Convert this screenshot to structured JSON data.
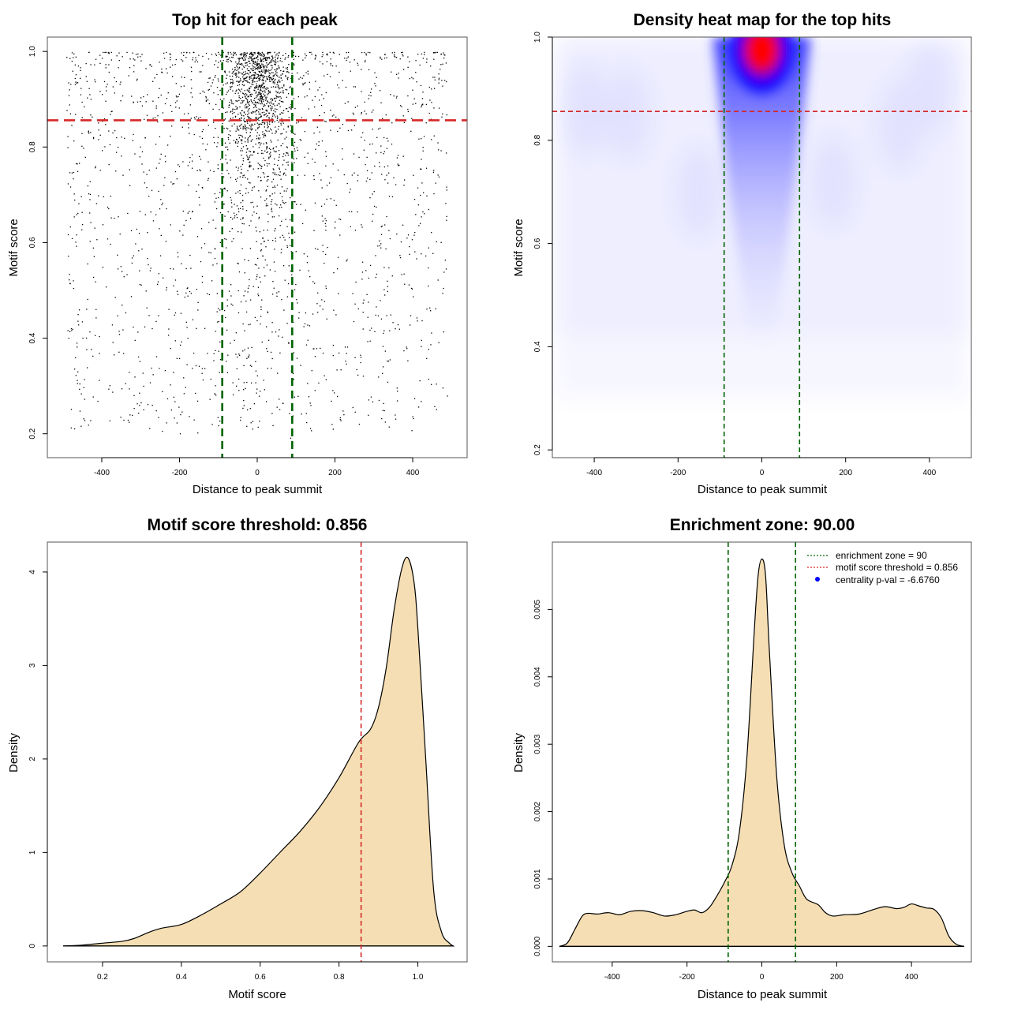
{
  "chart_data": [
    {
      "type": "scatter",
      "title": "Top hit for each peak",
      "xlabel": "Distance to peak summit",
      "ylabel": "Motif score",
      "xlim": [
        -540,
        540
      ],
      "ylim": [
        0.15,
        1.03
      ],
      "xticks": [
        -400,
        -200,
        0,
        200,
        400
      ],
      "xtick_labels": [
        "-400",
        "-200",
        "0",
        "200",
        "400"
      ],
      "yticks": [
        0.2,
        0.4,
        0.6,
        0.8,
        1.0
      ],
      "ytick_labels": [
        "0.2",
        "0.4",
        "0.6",
        "0.8",
        "1.0"
      ],
      "vlines": [
        -90,
        90
      ],
      "hline": 0.856,
      "point_count_estimate": 3000,
      "colors": {
        "points": "#000000",
        "vline": "#006400",
        "hline": "#d62728"
      }
    },
    {
      "type": "heatmap",
      "title": "Density heat map for the top hits",
      "xlabel": "Distance to peak summit",
      "ylabel": "Motif score",
      "xlim": [
        -500,
        500
      ],
      "ylim": [
        0.185,
        1.0
      ],
      "xticks": [
        -400,
        -200,
        0,
        200,
        400
      ],
      "xtick_labels": [
        "-400",
        "-200",
        "0",
        "200",
        "400"
      ],
      "yticks": [
        0.2,
        0.4,
        0.6,
        0.8,
        1.0
      ],
      "ytick_labels": [
        "0.2",
        "0.4",
        "0.6",
        "0.8",
        "1.0"
      ],
      "vlines": [
        -90,
        90
      ],
      "hline": 0.856,
      "hotspot": {
        "x": 0,
        "y": 0.975
      },
      "colors": {
        "low": "#ffffff",
        "mid": "#0000ff",
        "high": "#ff0000",
        "vline": "#006400",
        "hline": "#d62728"
      }
    },
    {
      "type": "area",
      "title": "Motif score threshold: 0.856",
      "xlabel": "Motif score",
      "ylabel": "Density",
      "xlim": [
        0.06,
        1.125
      ],
      "ylim": [
        -0.17,
        4.32
      ],
      "xticks": [
        0.2,
        0.4,
        0.6,
        0.8,
        1.0
      ],
      "xtick_labels": [
        "0.2",
        "0.4",
        "0.6",
        "0.8",
        "1.0"
      ],
      "yticks": [
        0,
        1,
        2,
        3,
        4
      ],
      "ytick_labels": [
        "0",
        "1",
        "2",
        "3",
        "4"
      ],
      "vline": 0.856,
      "x": [
        0.1,
        0.15,
        0.2,
        0.25,
        0.28,
        0.32,
        0.35,
        0.4,
        0.45,
        0.5,
        0.55,
        0.6,
        0.65,
        0.7,
        0.75,
        0.8,
        0.85,
        0.88,
        0.9,
        0.92,
        0.94,
        0.96,
        0.975,
        0.99,
        1.0,
        1.02,
        1.04,
        1.06,
        1.08,
        1.09
      ],
      "y": [
        0.0,
        0.01,
        0.03,
        0.05,
        0.08,
        0.15,
        0.19,
        0.23,
        0.33,
        0.45,
        0.58,
        0.78,
        1.0,
        1.22,
        1.48,
        1.8,
        2.18,
        2.32,
        2.55,
        2.98,
        3.6,
        4.05,
        4.15,
        3.9,
        3.4,
        2.0,
        0.6,
        0.15,
        0.03,
        0.0
      ],
      "colors": {
        "fill": "#f5deb3",
        "line": "#000000",
        "vline": "#d62728"
      }
    },
    {
      "type": "area",
      "title": "Enrichment zone: 90.00",
      "xlabel": "Distance to peak summit",
      "ylabel": "Density",
      "xlim": [
        -560,
        560
      ],
      "ylim": [
        -0.00023,
        0.006
      ],
      "xticks": [
        -400,
        -200,
        0,
        200,
        400
      ],
      "xtick_labels": [
        "-400",
        "-200",
        "0",
        "200",
        "400"
      ],
      "yticks": [
        0.0,
        0.001,
        0.002,
        0.003,
        0.004,
        0.005
      ],
      "ytick_labels": [
        "0.000",
        "0.001",
        "0.002",
        "0.003",
        "0.004",
        "0.005"
      ],
      "vlines": [
        -90,
        90
      ],
      "x": [
        -541,
        -520,
        -500,
        -480,
        -465,
        -440,
        -410,
        -380,
        -350,
        -320,
        -290,
        -260,
        -230,
        -200,
        -180,
        -160,
        -140,
        -120,
        -100,
        -80,
        -60,
        -40,
        -20,
        -10,
        0,
        10,
        20,
        40,
        60,
        80,
        100,
        120,
        150,
        170,
        190,
        220,
        260,
        300,
        330,
        360,
        380,
        400,
        420,
        440,
        460,
        480,
        500,
        520,
        541
      ],
      "y": [
        0.0,
        5e-05,
        0.00025,
        0.00045,
        0.00049,
        0.00048,
        0.0005,
        0.00047,
        0.00052,
        0.00053,
        0.0005,
        0.00045,
        0.00047,
        0.00052,
        0.00054,
        0.0005,
        0.00058,
        0.00075,
        0.00095,
        0.0012,
        0.0017,
        0.0028,
        0.0047,
        0.0055,
        0.00575,
        0.0055,
        0.0044,
        0.0025,
        0.0015,
        0.0011,
        0.0009,
        0.0007,
        0.00062,
        0.0005,
        0.00045,
        0.00047,
        0.00048,
        0.00055,
        0.00059,
        0.00056,
        0.00058,
        0.00063,
        0.0006,
        0.00057,
        0.00055,
        0.00042,
        0.00015,
        3e-05,
        0.0
      ],
      "legend": [
        {
          "label": "enrichment zone = 90",
          "symbol": "dotted-line",
          "color": "#006400"
        },
        {
          "label": "motif score threshold = 0.856",
          "symbol": "dotted-line",
          "color": "#d62728"
        },
        {
          "label": "centrality p-val = -6.6760",
          "symbol": "dot",
          "color": "#0000ff"
        }
      ],
      "legend_position": "top-right",
      "colors": {
        "fill": "#f5deb3",
        "line": "#000000",
        "vline": "#006400"
      }
    }
  ]
}
